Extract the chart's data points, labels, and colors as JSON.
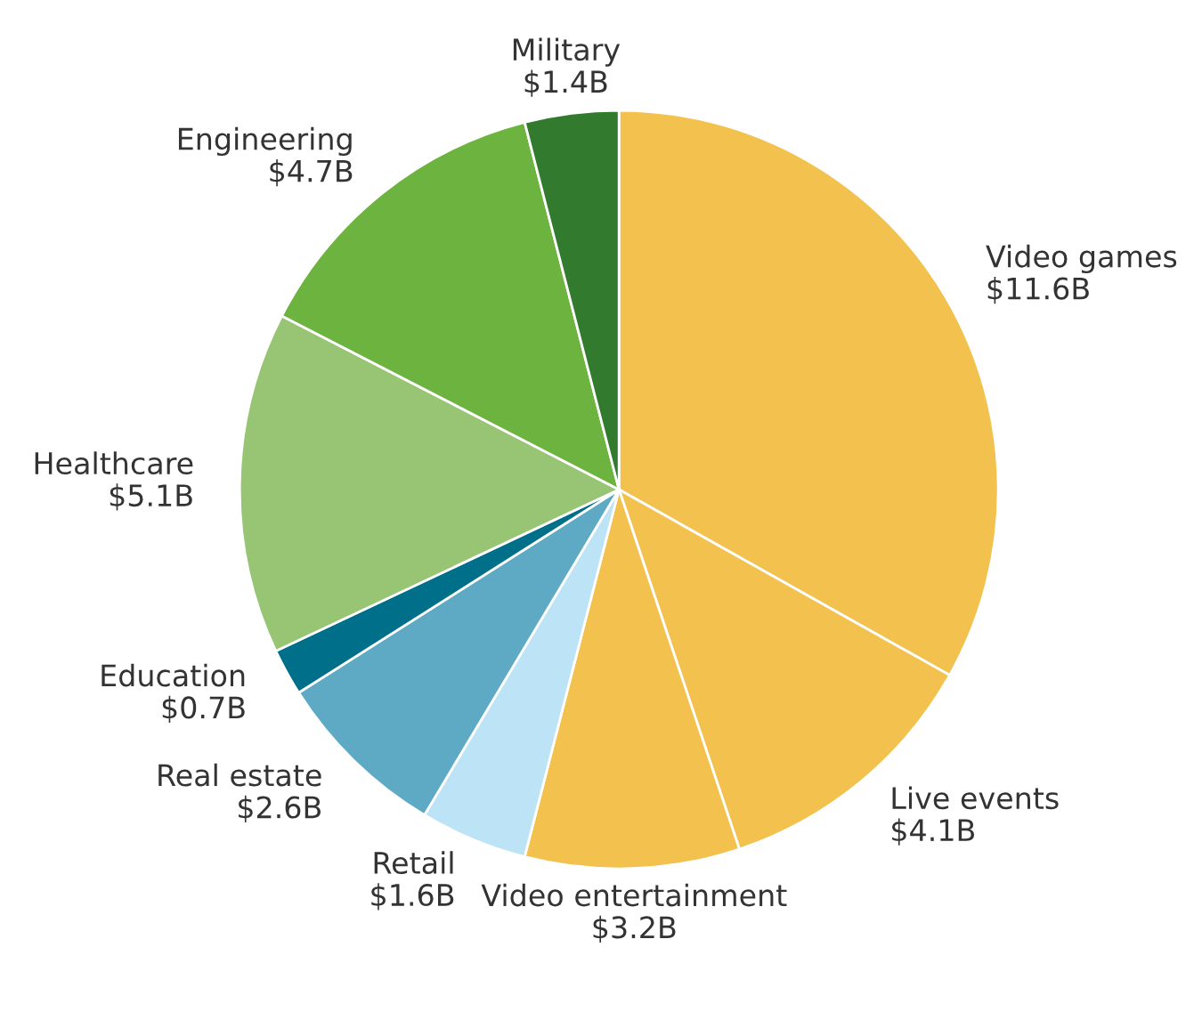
{
  "chart_data": {
    "type": "pie",
    "categories": [
      "Video games",
      "Live events",
      "Video entertainment",
      "Retail",
      "Real estate",
      "Education",
      "Healthcare",
      "Engineering",
      "Military"
    ],
    "values": [
      11.6,
      4.1,
      3.2,
      1.6,
      2.6,
      0.7,
      5.1,
      4.7,
      1.4
    ],
    "value_labels": [
      "$11.6B",
      "$4.1B",
      "$3.2B",
      "$1.6B",
      "$2.6B",
      "$0.7B",
      "$5.1B",
      "$4.7B",
      "$1.4B"
    ],
    "colors": [
      "#f2c14e",
      "#f2c14e",
      "#f2c14e",
      "#bde3f7",
      "#5eaac4",
      "#006f8a",
      "#98c574",
      "#6db33f",
      "#327a2d"
    ]
  }
}
